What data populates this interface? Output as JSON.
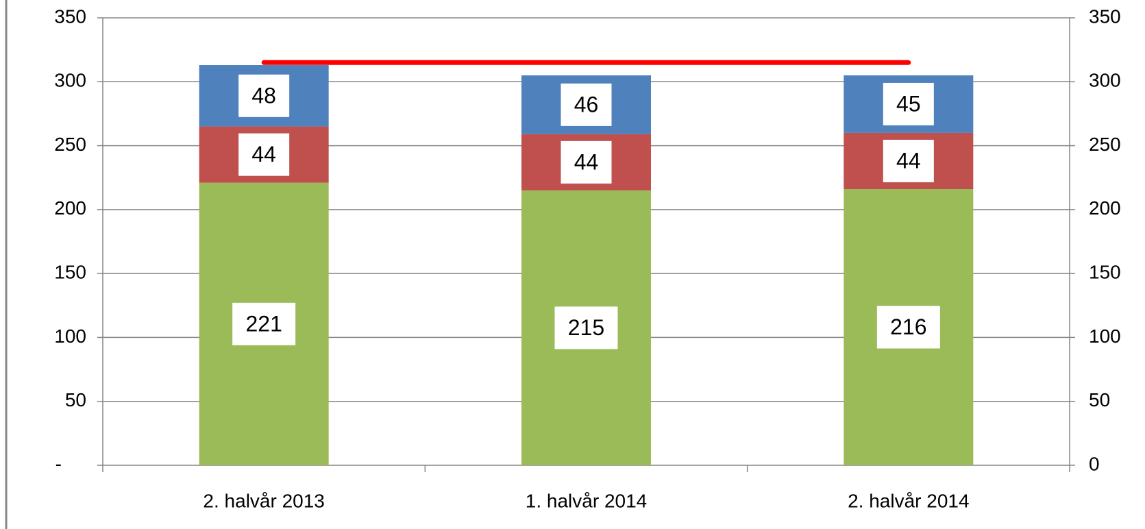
{
  "chart_data": {
    "type": "bar",
    "stacked": true,
    "categories": [
      "2. halvår 2013",
      "1. halvår 2014",
      "2. halvår 2014"
    ],
    "series": [
      {
        "color": "#9bbb59",
        "values": [
          221,
          215,
          216
        ]
      },
      {
        "color": "#c0504d",
        "values": [
          44,
          44,
          44
        ]
      },
      {
        "color": "#4f81bd",
        "values": [
          48,
          46,
          45
        ]
      },
      {
        "type": "line",
        "axis": "y2",
        "color": "#ff0000",
        "values": [
          315,
          315,
          315
        ]
      }
    ],
    "ylim": [
      0,
      350
    ],
    "yticks": [
      {
        "value": 0,
        "label": "-"
      },
      50,
      100,
      150,
      200,
      250,
      300,
      350
    ],
    "y2lim": [
      0,
      350
    ],
    "y2ticks": [
      0,
      50,
      100,
      150,
      200,
      250,
      300,
      350
    ],
    "grid": true
  }
}
